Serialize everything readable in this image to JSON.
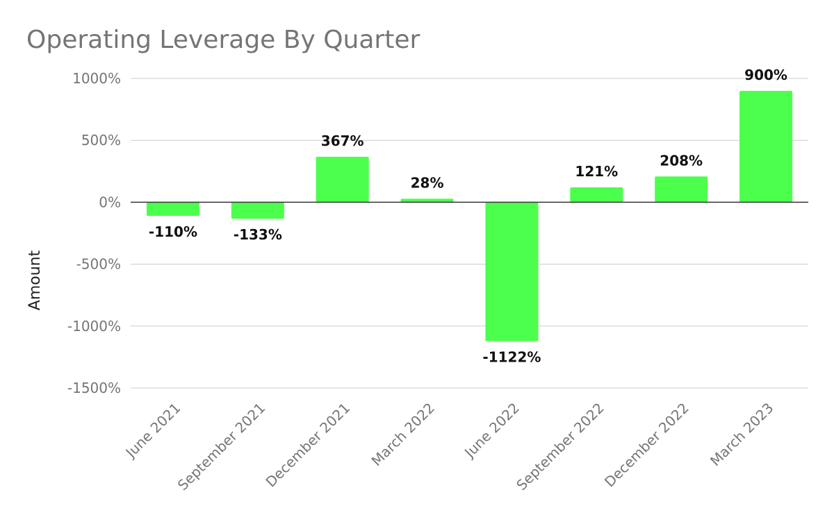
{
  "chart_data": {
    "type": "bar",
    "title": "Operating Leverage By Quarter",
    "xlabel": "",
    "ylabel": "Amount",
    "categories": [
      "June 2021",
      "September 2021",
      "December 2021",
      "March 2022",
      "June 2022",
      "September 2022",
      "December 2022",
      "March 2023"
    ],
    "values": [
      -110,
      -133,
      367,
      28,
      -1122,
      121,
      208,
      900
    ],
    "data_labels": [
      "-110%",
      "-133%",
      "367%",
      "28%",
      "-1122%",
      "121%",
      "208%",
      "900%"
    ],
    "ylim": [
      -1500,
      1000
    ],
    "yticks": [
      1000,
      500,
      0,
      -500,
      -1000,
      -1500
    ],
    "ytick_labels": [
      "1000%",
      "500%",
      "0%",
      "-500%",
      "-1000%",
      "-1500%"
    ],
    "grid": true,
    "legend": "none",
    "bar_color": "#4cff4c"
  }
}
